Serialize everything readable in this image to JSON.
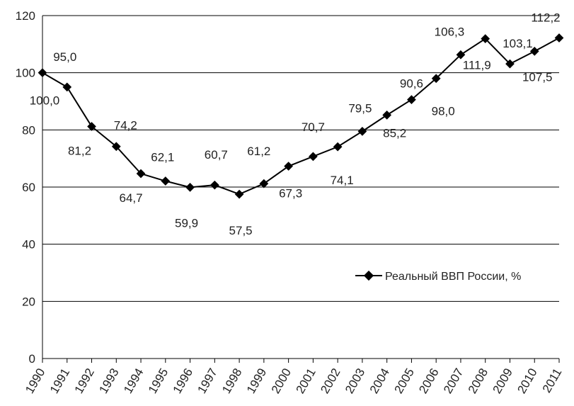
{
  "chart_data": {
    "type": "line",
    "categories": [
      "1990",
      "1991",
      "1992",
      "1993",
      "1994",
      "1995",
      "1996",
      "1997",
      "1998",
      "1999",
      "2000",
      "2001",
      "2002",
      "2003",
      "2004",
      "2005",
      "2006",
      "2007",
      "2008",
      "2009",
      "2010",
      "2011"
    ],
    "series": [
      {
        "name": "Реальный ВВП России, %",
        "values": [
          100.0,
          95.0,
          81.2,
          74.2,
          64.7,
          62.1,
          59.9,
          60.7,
          57.5,
          61.2,
          67.3,
          70.7,
          74.1,
          79.5,
          85.2,
          90.6,
          98.0,
          106.3,
          111.9,
          103.1,
          107.5,
          112.2
        ],
        "labels": [
          "100,0",
          "95,0",
          "81,2",
          "74,2",
          "64,7",
          "62,1",
          "59,9",
          "60,7",
          "57,5",
          "61,2",
          "67,3",
          "70,7",
          "74,1",
          "79,5",
          "85,2",
          "90,6",
          "98,0",
          "106,3",
          "111,9",
          "103,1",
          "107,5",
          "112,2"
        ],
        "color": "#000000"
      }
    ],
    "ylim": [
      0,
      120
    ],
    "yticks": [
      "0",
      "20",
      "40",
      "60",
      "80",
      "100",
      "120"
    ],
    "grid": true,
    "legend_position": "right"
  }
}
